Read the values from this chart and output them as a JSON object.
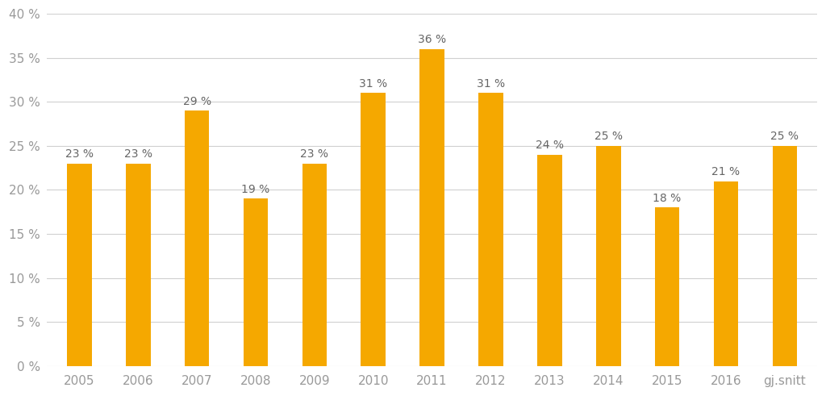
{
  "categories": [
    "2005",
    "2006",
    "2007",
    "2008",
    "2009",
    "2010",
    "2011",
    "2012",
    "2013",
    "2014",
    "2015",
    "2016",
    "gj.snitt"
  ],
  "values": [
    23,
    23,
    29,
    19,
    23,
    31,
    36,
    31,
    24,
    25,
    18,
    21,
    25
  ],
  "bar_color": "#F5A800",
  "background_color": "#ffffff",
  "ylim": [
    0,
    40
  ],
  "yticks": [
    0,
    5,
    10,
    15,
    20,
    25,
    30,
    35,
    40
  ],
  "grid_color": "#d0d0d0",
  "label_color": "#999999",
  "bar_label_color": "#666666",
  "bar_width": 0.42,
  "figsize": [
    10.24,
    4.91
  ],
  "dpi": 100
}
